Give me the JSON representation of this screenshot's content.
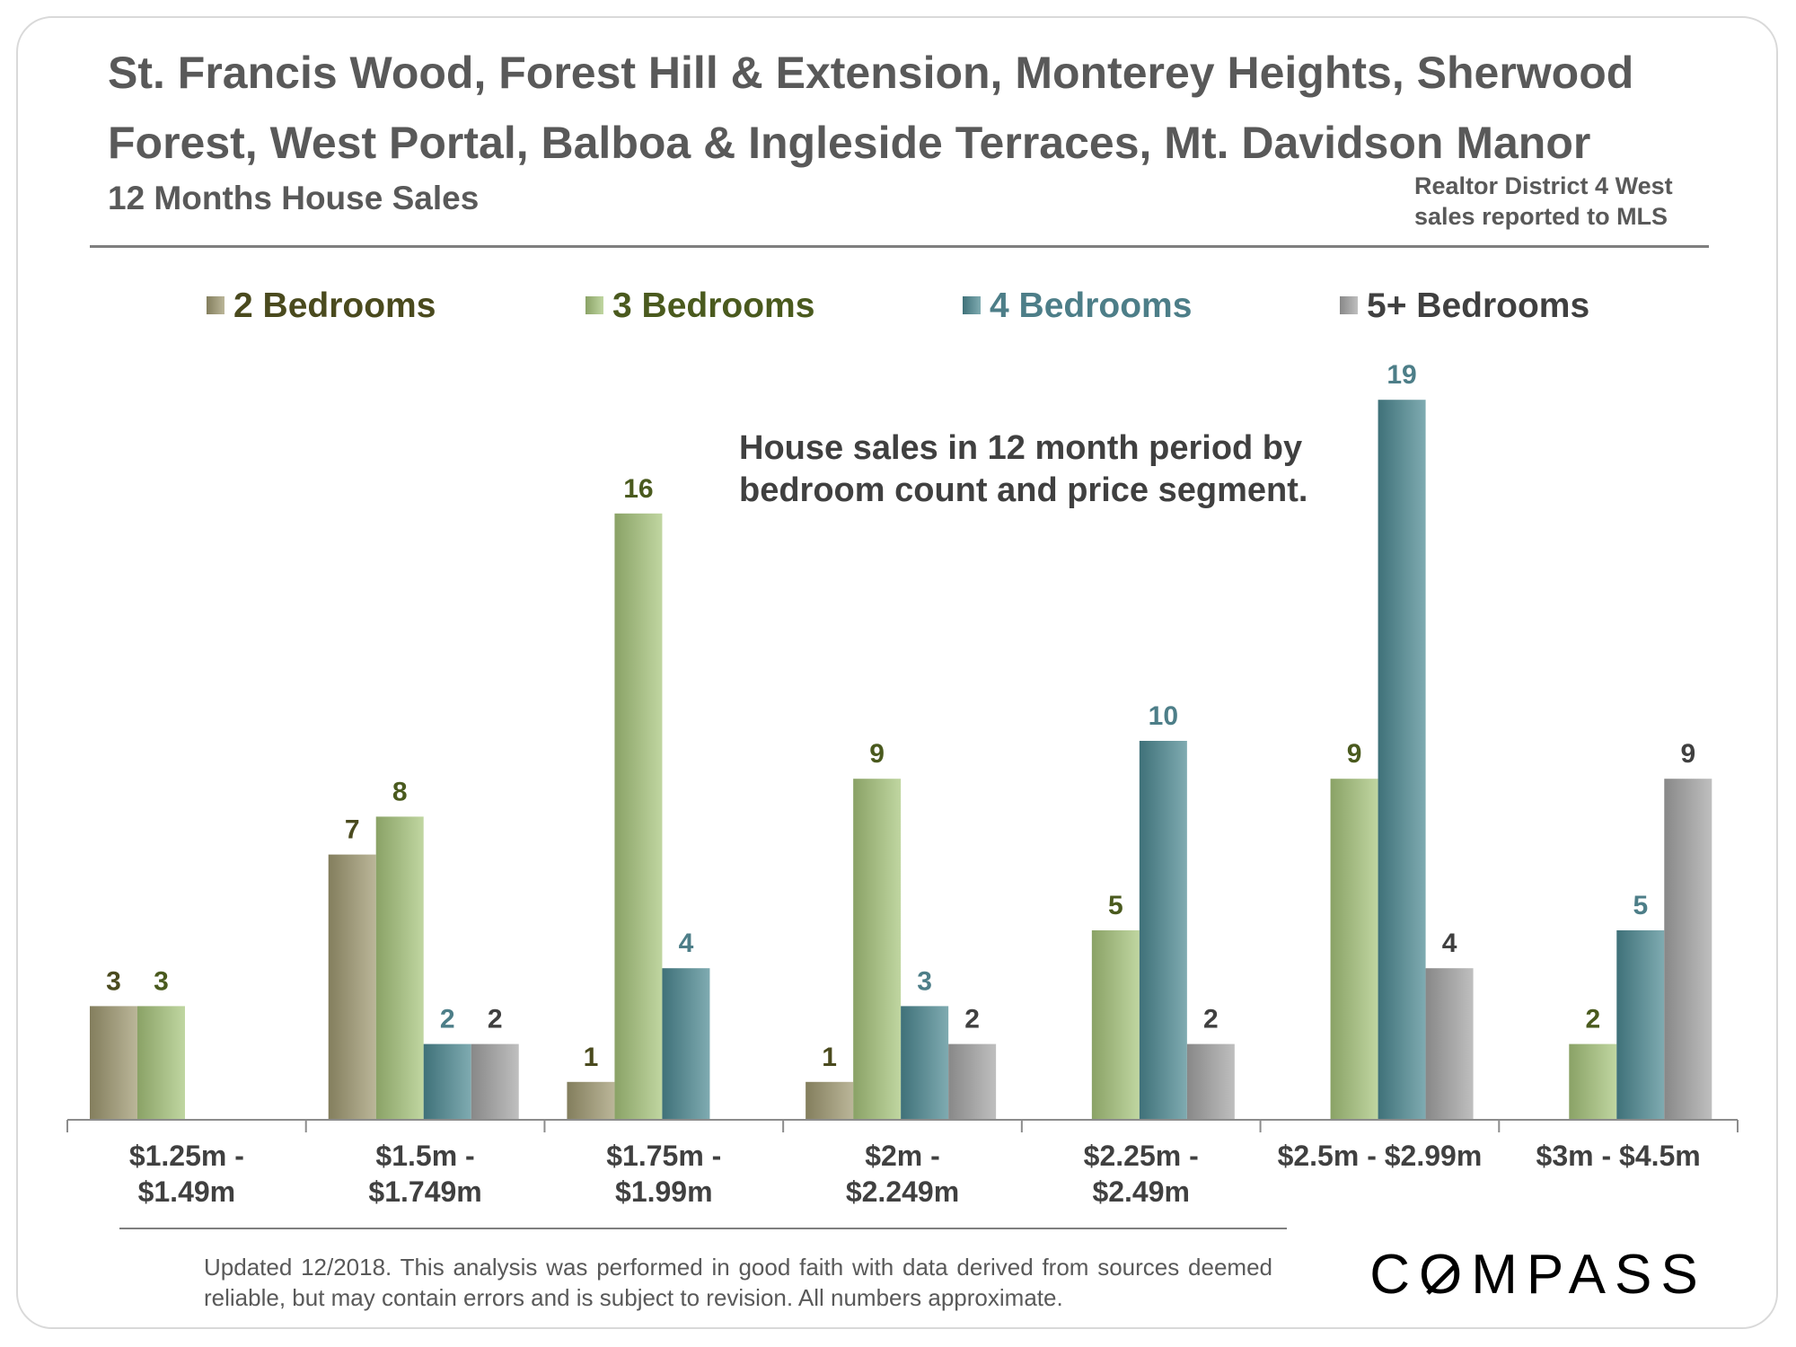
{
  "header": {
    "title": "St. Francis Wood, Forest Hill & Extension, Monterey Heights, Sherwood Forest, West Portal, Balboa & Ingleside Terraces, Mt. Davidson Manor",
    "subtitle": "12 Months House Sales",
    "source_line1": "Realtor District 4 West",
    "source_line2": "sales reported to MLS"
  },
  "annotation": {
    "line1": "House sales in 12 month period by",
    "line2": "bedroom count and price segment."
  },
  "footer": {
    "note": "Updated 12/2018. This analysis was performed in good faith with data derived from sources deemed reliable, but may contain errors and is subject to revision. All numbers approximate.",
    "logo_text": "COMPASS"
  },
  "colors": {
    "bed2": "#a09a72",
    "bed3": "#a8c67c",
    "bed4": "#4d8a93",
    "bed5": "#a6a6a6",
    "bed2_label": "#4a4a1e",
    "bed3_label": "#4a5a1e",
    "bed4_label": "#4d7e88",
    "bed5_label": "#404040"
  },
  "chart_data": {
    "type": "bar",
    "categories": [
      [
        "$1.25m -",
        "$1.49m"
      ],
      [
        "$1.5m -",
        "$1.749m"
      ],
      [
        "$1.75m -",
        "$1.99m"
      ],
      [
        "$2m -",
        "$2.249m"
      ],
      [
        "$2.25m -",
        "$2.49m"
      ],
      [
        "$2.5m - $2.99m"
      ],
      [
        "$3m - $4.5m"
      ]
    ],
    "series": [
      {
        "name": "2 Bedrooms",
        "color_key": "bed2",
        "values": [
          3,
          7,
          1,
          1,
          null,
          null,
          null
        ]
      },
      {
        "name": "3 Bedrooms",
        "color_key": "bed3",
        "values": [
          3,
          8,
          16,
          9,
          5,
          9,
          2
        ]
      },
      {
        "name": "4 Bedrooms",
        "color_key": "bed4",
        "values": [
          null,
          2,
          4,
          3,
          10,
          19,
          5
        ]
      },
      {
        "name": "5+ Bedrooms",
        "color_key": "bed5",
        "values": [
          null,
          2,
          null,
          2,
          2,
          4,
          9
        ]
      }
    ],
    "ylim": [
      0,
      19
    ],
    "grid": false,
    "legend_position": "top",
    "data_labels": true
  }
}
